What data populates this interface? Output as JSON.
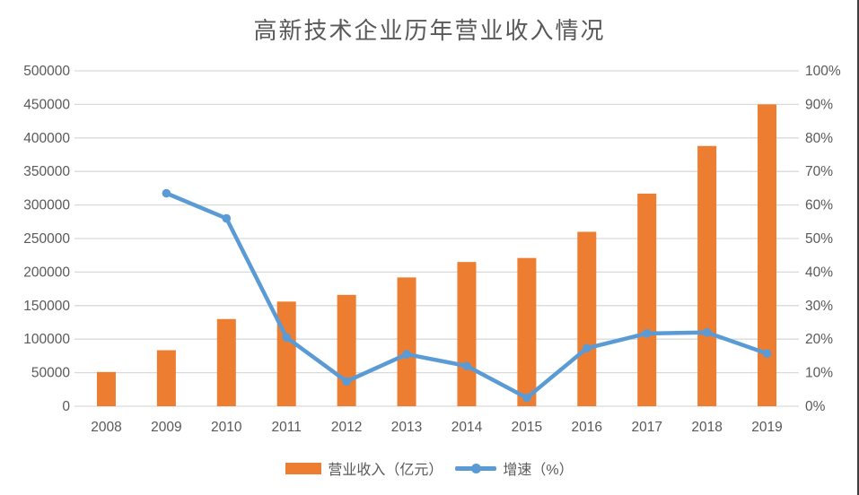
{
  "title": "高新技术企业历年营业收入情况",
  "legend": {
    "items": [
      {
        "label": "营业收入（亿元）",
        "marker": "rect",
        "color": "#ED7D31"
      },
      {
        "label": "增速（%）",
        "marker": "line-dot",
        "color": "#5B9BD5"
      }
    ]
  },
  "colors": {
    "bar": "#ED7D31",
    "line": "#5B9BD5",
    "gridline": "#D9D9D9",
    "axis_text": "#595959",
    "title_text": "#595959",
    "frame_right_border": "#3F3F3F",
    "background": "#FFFFFF"
  },
  "chart_data": {
    "type": "combo-bar-line",
    "title": "高新技术企业历年营业收入情况",
    "categories": [
      "2008",
      "2009",
      "2010",
      "2011",
      "2012",
      "2013",
      "2014",
      "2015",
      "2016",
      "2017",
      "2018",
      "2019"
    ],
    "series": [
      {
        "name": "营业收入（亿元）",
        "type": "bar",
        "axis": "left",
        "color": "#ED7D31",
        "values": [
          51000,
          83500,
          130000,
          156000,
          166000,
          192000,
          215000,
          221000,
          260000,
          317000,
          388000,
          450000
        ]
      },
      {
        "name": "增速（%）",
        "type": "line",
        "axis": "right",
        "color": "#5B9BD5",
        "values": [
          null,
          63.5,
          56.0,
          20.5,
          7.4,
          15.5,
          12.0,
          2.5,
          17.3,
          21.7,
          22.0,
          15.7
        ]
      }
    ],
    "left_axis": {
      "min": 0,
      "max": 500000,
      "step": 50000,
      "tick_labels": [
        "0",
        "50000",
        "100000",
        "150000",
        "200000",
        "250000",
        "300000",
        "350000",
        "400000",
        "450000",
        "500000"
      ]
    },
    "right_axis": {
      "min": 0,
      "max": 100,
      "step": 10,
      "tick_labels": [
        "0%",
        "10%",
        "20%",
        "30%",
        "40%",
        "50%",
        "60%",
        "70%",
        "80%",
        "90%",
        "100%"
      ]
    },
    "grid": true,
    "legend_position": "bottom"
  }
}
